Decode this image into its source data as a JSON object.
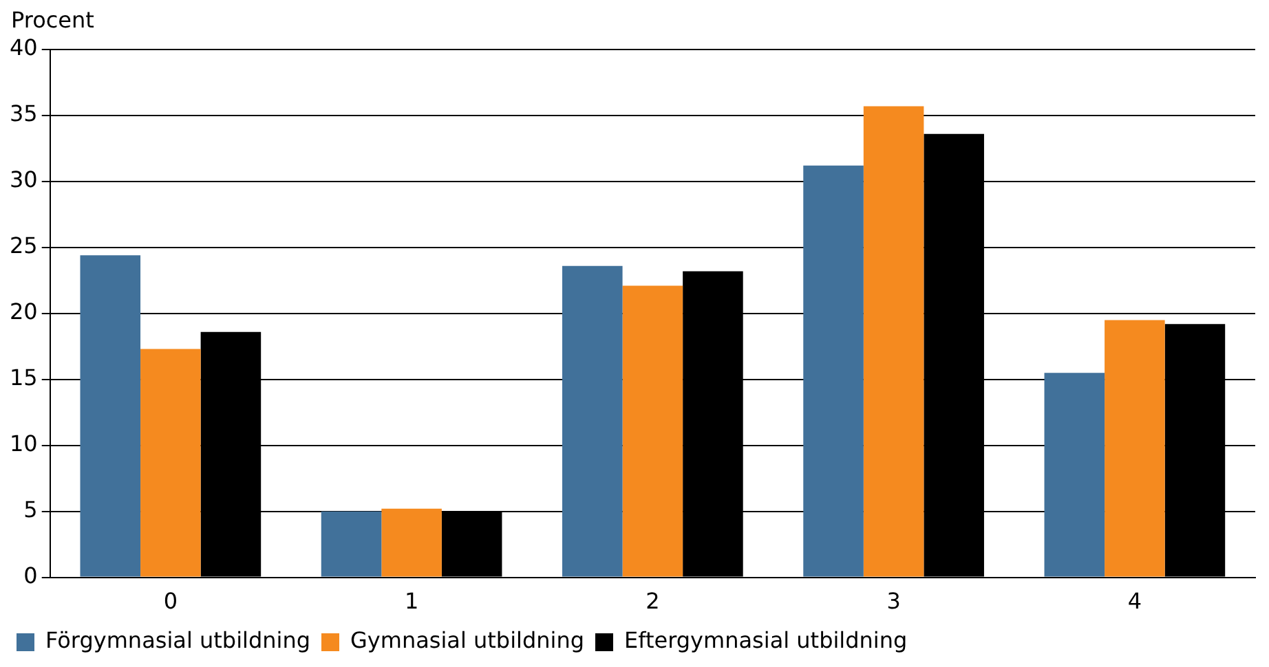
{
  "chart_data": {
    "type": "bar",
    "ylabel": "Procent",
    "categories": [
      "0",
      "1",
      "2",
      "3",
      "4"
    ],
    "series": [
      {
        "name": "Förgymnasial utbildning",
        "color": "#41719a",
        "values": [
          24.4,
          5.0,
          23.6,
          31.2,
          15.5
        ]
      },
      {
        "name": "Gymnasial utbildning",
        "color": "#f58a1f",
        "values": [
          17.3,
          5.2,
          22.1,
          35.7,
          19.5
        ]
      },
      {
        "name": "Eftergymnasial utbildning",
        "color": "#000000",
        "values": [
          18.6,
          5.0,
          23.2,
          33.6,
          19.2
        ]
      }
    ],
    "ylim": [
      0,
      40
    ],
    "yticks": [
      0,
      5,
      10,
      15,
      20,
      25,
      30,
      35,
      40
    ],
    "grid": "y",
    "legend": "bottom left"
  }
}
